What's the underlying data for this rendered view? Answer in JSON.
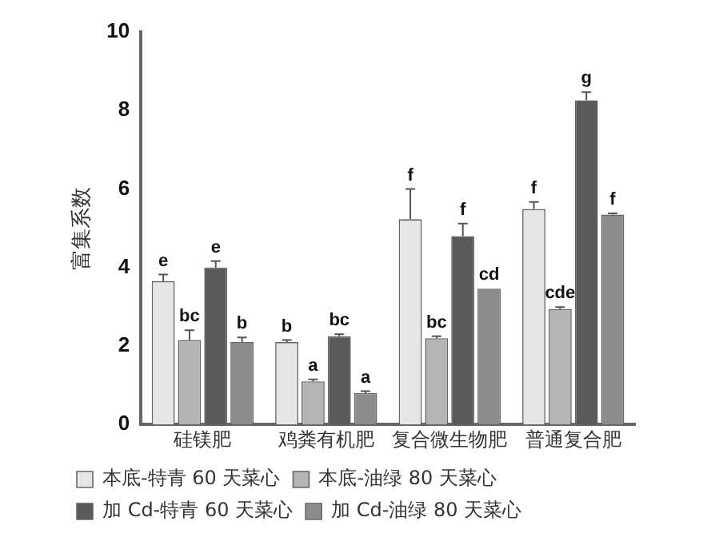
{
  "chart_data": {
    "type": "bar",
    "ylabel": "富集系数",
    "categories": [
      "硅镁肥",
      "鸡粪有机肥",
      "复合微生物肥",
      "普通复合肥"
    ],
    "series": [
      {
        "name": "本底-特青 60 天菜心",
        "color": "#e6e6e6",
        "values": [
          3.65,
          2.1,
          5.23,
          5.49
        ],
        "errors": [
          0.17,
          0.05,
          0.77,
          0.18
        ],
        "value_labels": [
          "e",
          "b",
          "f",
          "f"
        ]
      },
      {
        "name": "本底-油绿 80 天菜心",
        "color": "#b4b4b4",
        "values": [
          2.15,
          1.1,
          2.2,
          2.94
        ],
        "errors": [
          0.25,
          0.05,
          0.05,
          0.05
        ],
        "value_labels": [
          "bc",
          "a",
          "bc",
          "cde"
        ]
      },
      {
        "name": "加 Cd-特青 60 天菜心",
        "color": "#5a5a5a",
        "values": [
          4.0,
          2.25,
          4.8,
          8.26
        ],
        "errors": [
          0.16,
          0.05,
          0.32,
          0.21
        ],
        "value_labels": [
          "e",
          "bc",
          "f",
          "g"
        ]
      },
      {
        "name": "加 Cd-油绿 80 天菜心",
        "color": "#8c8c8c",
        "values": [
          2.1,
          0.8,
          3.46,
          5.35
        ],
        "errors": [
          0.12,
          0.05,
          null,
          0.03
        ],
        "value_labels": [
          "b",
          "a",
          "cd",
          "f"
        ]
      }
    ],
    "ylim": [
      0,
      10
    ],
    "yticks": [
      0,
      2,
      4,
      6,
      8,
      10
    ],
    "grid": false,
    "legend": "bottom"
  }
}
